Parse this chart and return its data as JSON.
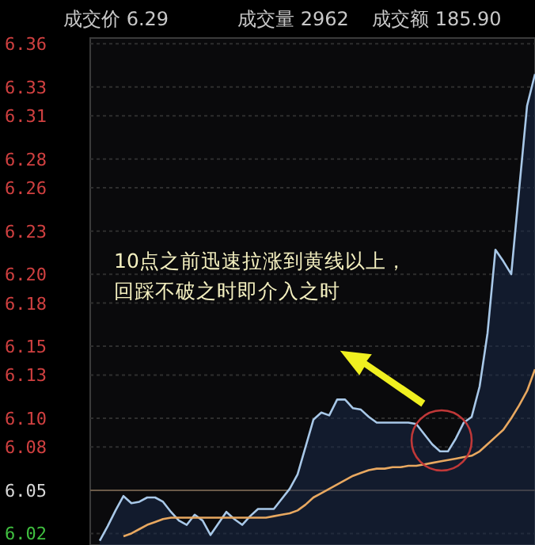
{
  "chart_data": {
    "type": "line",
    "categories": [
      null,
      null,
      null,
      null,
      null,
      null,
      null,
      null,
      null,
      null,
      null,
      null,
      null,
      null,
      null,
      null,
      null,
      null,
      null,
      null,
      null,
      null,
      null,
      null,
      null,
      null,
      null,
      null,
      null,
      null,
      null,
      null,
      null,
      null,
      null,
      null,
      null,
      null,
      null,
      null,
      null,
      null,
      null,
      null,
      null,
      null,
      null,
      null,
      null,
      null,
      null,
      null,
      null,
      null,
      null,
      null
    ],
    "series": [
      {
        "type": "area",
        "color": "#a8c8e8",
        "values": [
          6.015,
          6.025,
          6.036,
          6.046,
          6.041,
          6.042,
          6.045,
          6.045,
          6.042,
          6.035,
          6.029,
          6.026,
          6.033,
          6.029,
          6.019,
          6.027,
          6.035,
          6.03,
          6.026,
          6.032,
          6.037,
          6.037,
          6.037,
          6.044,
          6.051,
          6.061,
          6.08,
          6.099,
          6.104,
          6.102,
          6.113,
          6.113,
          6.107,
          6.106,
          6.101,
          6.097,
          6.097,
          6.097,
          6.097,
          6.097,
          6.096,
          6.089,
          6.082,
          6.077,
          6.077,
          6.086,
          6.097,
          6.101,
          6.122,
          6.159,
          6.217,
          6.209,
          6.2,
          6.259,
          6.317,
          6.339
        ]
      },
      {
        "color": "#e8a860",
        "values": [
          null,
          null,
          null,
          6.018,
          6.02,
          6.023,
          6.026,
          6.028,
          6.03,
          6.031,
          6.031,
          6.031,
          6.031,
          6.031,
          6.031,
          6.031,
          6.031,
          6.031,
          6.031,
          6.031,
          6.031,
          6.031,
          6.032,
          6.033,
          6.034,
          6.036,
          6.04,
          6.045,
          6.048,
          6.051,
          6.054,
          6.057,
          6.06,
          6.062,
          6.064,
          6.065,
          6.065,
          6.066,
          6.066,
          6.067,
          6.067,
          6.068,
          6.069,
          6.07,
          6.071,
          6.072,
          6.073,
          6.074,
          6.077,
          6.082,
          6.087,
          6.092,
          6.1,
          6.109,
          6.119,
          6.134
        ]
      }
    ],
    "ylim": [
      6.012,
      6.364
    ],
    "yticks": [
      6.36,
      6.33,
      6.31,
      6.28,
      6.26,
      6.23,
      {
        "value": 6.2,
        "label": "6.20"
      },
      6.18,
      6.15,
      6.13,
      {
        "value": 6.1,
        "label": "6.10"
      },
      6.08,
      6.05,
      6.02
    ],
    "grid": "y",
    "tick_labels": "y",
    "ref_lines": [
      {
        "axis": "y",
        "value": 6.05,
        "color": "#6a5a48"
      }
    ],
    "annotations": [
      "成交价 6.29",
      "成交量 2962",
      "成交额 185.90",
      "10点之前迅速拉涨到黄线以上，",
      "回踩不破之时即介入之时"
    ]
  }
}
